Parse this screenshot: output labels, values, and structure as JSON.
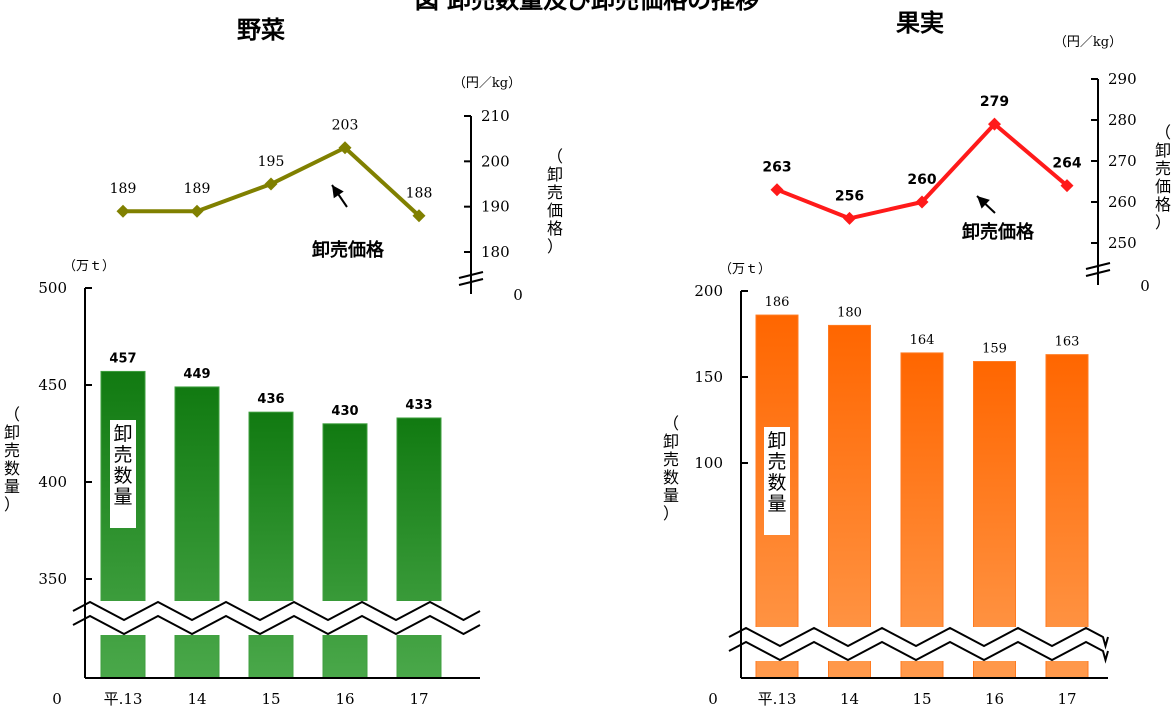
{
  "page": {
    "heading": "図 卸売数量及び卸売価格の推移"
  },
  "colors": {
    "veg_price": "#808000",
    "veg_bar_top": "#117A11",
    "veg_bar_bottom": "#4AA84A",
    "fruit_price": "#FF1A1A",
    "fruit_bar_top": "#FF6600",
    "fruit_bar_bottom": "#FF9A4D"
  },
  "chart_data": [
    {
      "type": "bar+line",
      "panel": "vegetables",
      "title": "野菜",
      "categories": [
        "平.13",
        "14",
        "15",
        "16",
        "17"
      ],
      "series": [
        {
          "name": "卸売数量",
          "type": "bar",
          "values": [
            457,
            449,
            436,
            430,
            433
          ]
        },
        {
          "name": "卸売価格",
          "type": "line",
          "values": [
            189,
            189,
            195,
            203,
            188
          ]
        }
      ],
      "quantity_axis": {
        "label": "（卸売数量）",
        "unit": "（万ｔ）",
        "ticks": [
          "500",
          "450",
          "400",
          "350"
        ],
        "zero": "0",
        "range": [
          350,
          500
        ],
        "broken": true
      },
      "price_axis": {
        "label": "（卸売価格）",
        "unit": "（円／kg）",
        "ticks": [
          "210",
          "200",
          "190",
          "180"
        ],
        "zero": "0",
        "range": [
          180,
          210
        ],
        "broken": true
      },
      "bar_inner_label": "卸売数量",
      "annotation": "卸売価格"
    },
    {
      "type": "bar+line",
      "panel": "fruits",
      "title": "果実",
      "categories": [
        "平.13",
        "14",
        "15",
        "16",
        "17"
      ],
      "series": [
        {
          "name": "卸売数量",
          "type": "bar",
          "values": [
            186,
            180,
            164,
            159,
            163
          ]
        },
        {
          "name": "卸売価格",
          "type": "line",
          "values": [
            263,
            256,
            260,
            279,
            264
          ]
        }
      ],
      "quantity_axis": {
        "label": "（卸売数量）",
        "unit": "（万ｔ）",
        "ticks": [
          "200",
          "150",
          "100"
        ],
        "zero": "0",
        "range": [
          50,
          200
        ],
        "broken": true
      },
      "price_axis": {
        "label": "（卸売価格）",
        "unit": "（円／kg）",
        "ticks": [
          "290",
          "280",
          "270",
          "260",
          "250"
        ],
        "zero": "0",
        "range": [
          250,
          290
        ],
        "broken": true
      },
      "bar_inner_label": "卸売数量",
      "annotation": "卸売価格"
    }
  ]
}
